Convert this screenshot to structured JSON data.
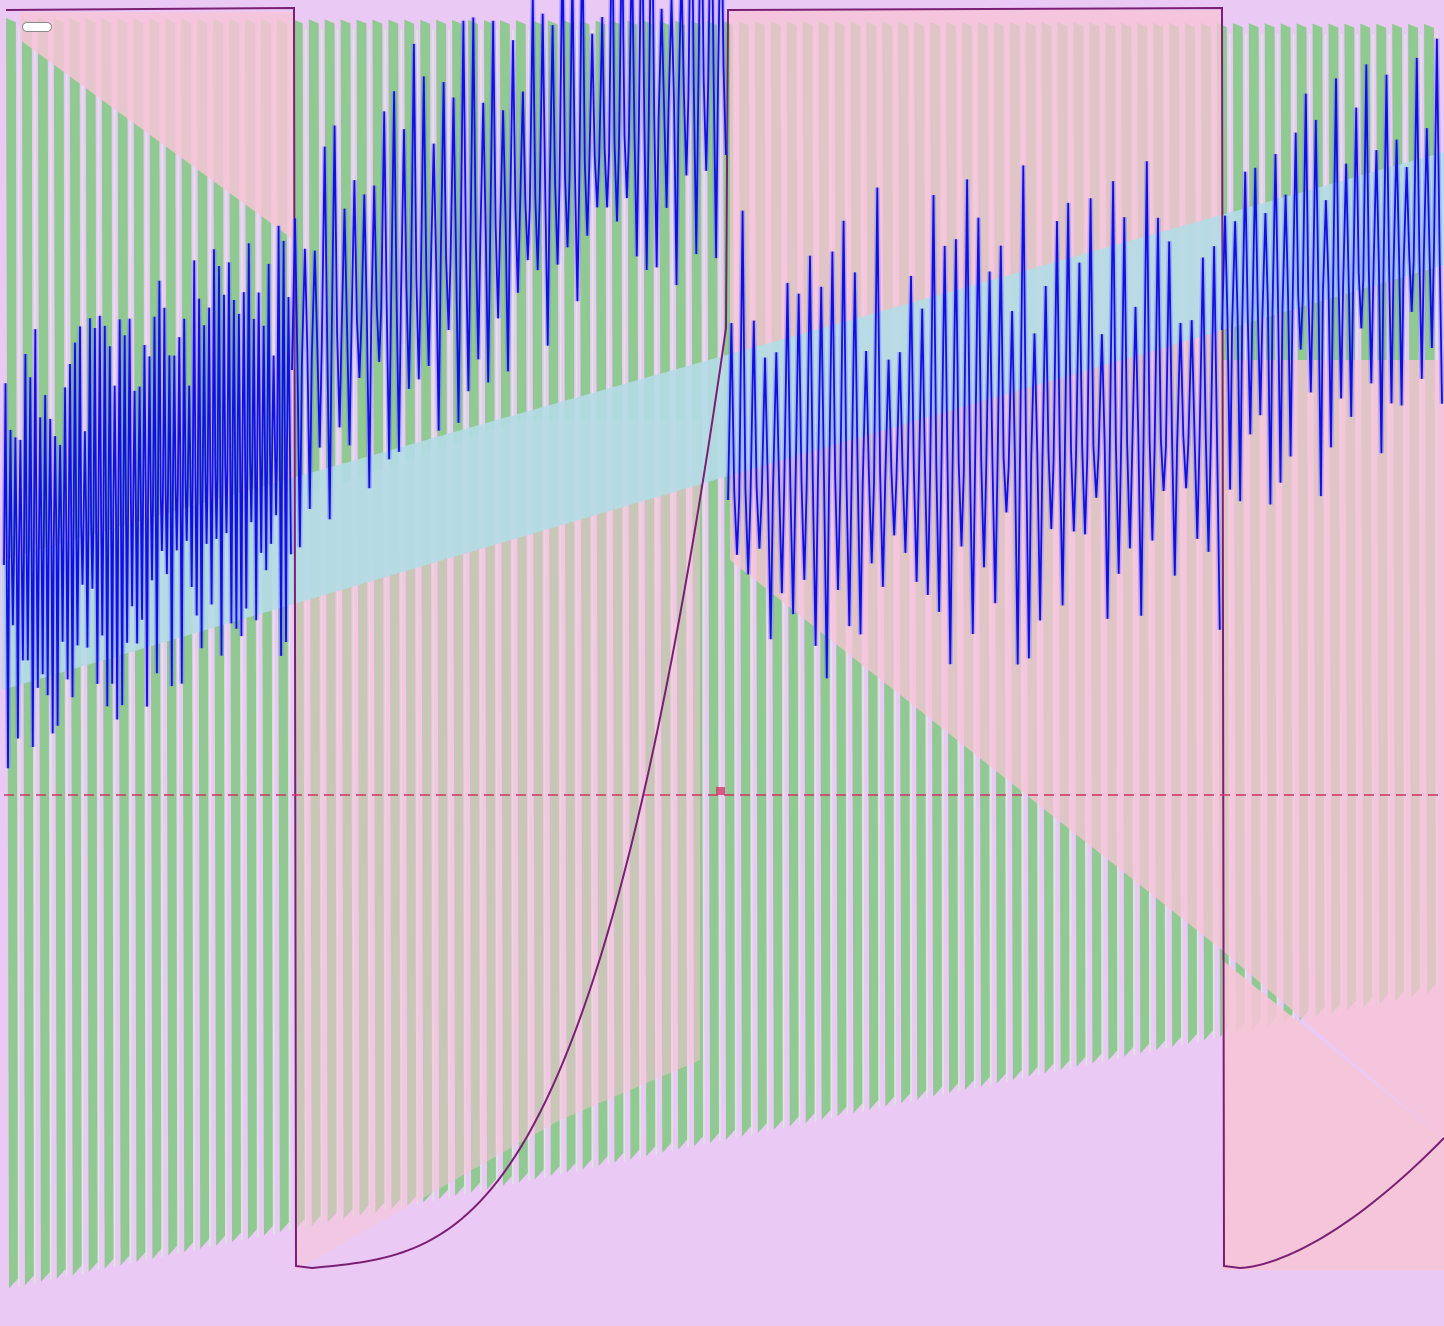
{
  "colors": {
    "background": "#eacaf5",
    "green_bars": "#7ec87e",
    "green_bar_highlight": "#d9f0d9",
    "pink_region": "#f6c4d6",
    "light_blue_band": "#b4dbe6",
    "purple_curve": "#7a1f73",
    "blue_series": "#1010e0",
    "blue_glow": "#6a6af5",
    "red_dashed_line": "#d23a6a"
  },
  "controls": {
    "corner_toggle": {
      "state": "off"
    }
  },
  "waveform": {
    "green_bar_count": 90,
    "blue_segment_one_peaks": 58,
    "blue_segment_two_peaks": 44,
    "blue_segment_three_peaks": 22
  }
}
